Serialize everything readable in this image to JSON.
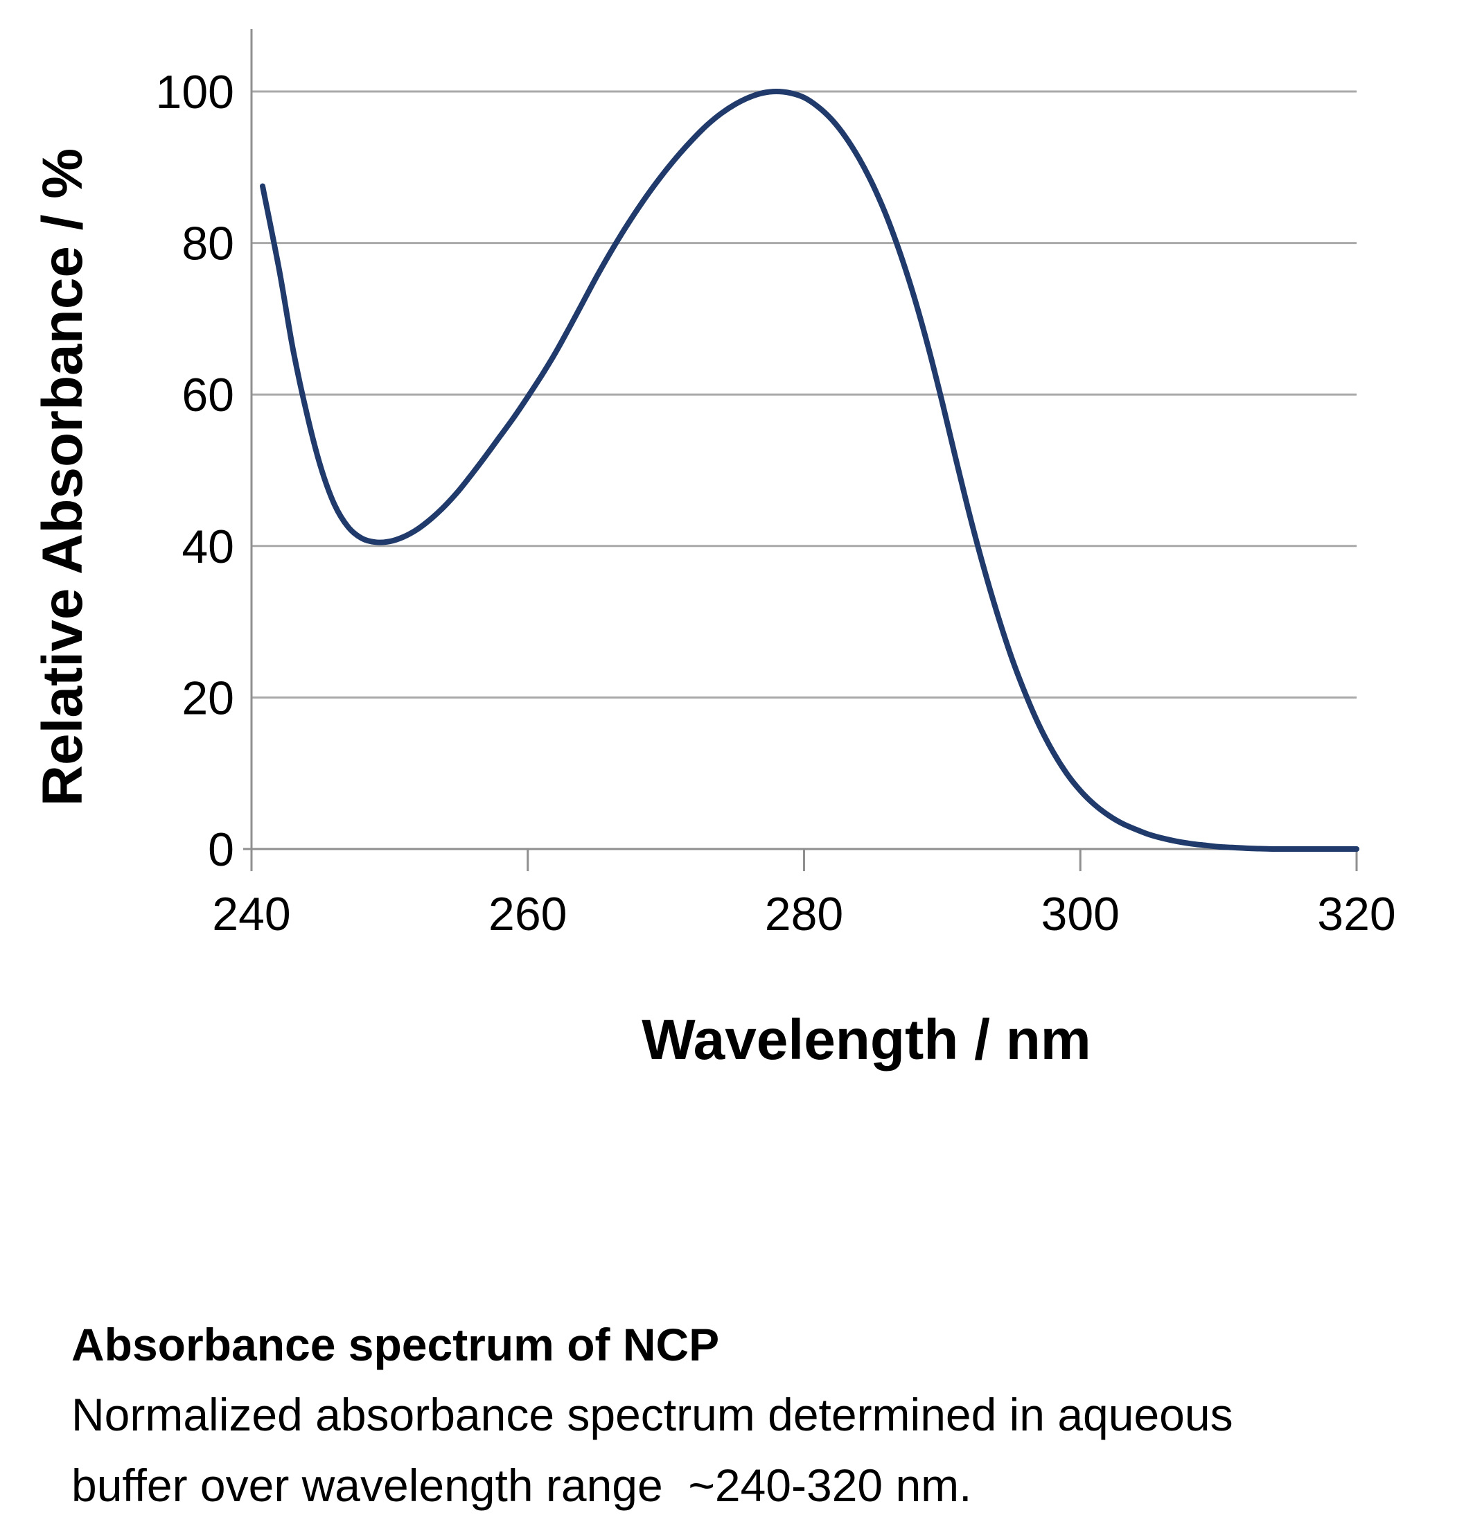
{
  "chart_data": {
    "type": "line",
    "xlabel": "Wavelength / nm",
    "ylabel": "Relative Absorbance / %",
    "xlim": [
      240,
      320
    ],
    "ylim": [
      0,
      100
    ],
    "x_ticks": [
      "240",
      "260",
      "280",
      "300",
      "320"
    ],
    "y_ticks": [
      "0",
      "20",
      "40",
      "60",
      "80",
      "100"
    ],
    "grid": "horizontal",
    "series_color": "#1f3a6b",
    "series": [
      {
        "x": [
          240.8,
          242,
          243,
          244,
          245,
          246,
          247,
          248,
          249,
          250,
          251,
          252,
          253,
          254,
          255,
          256,
          257,
          258,
          259,
          260,
          261,
          262,
          263,
          264,
          265,
          266,
          267,
          268,
          269,
          270,
          271,
          272,
          273,
          274,
          275,
          276,
          277,
          278,
          279,
          280,
          281,
          282,
          283,
          284,
          285,
          286,
          287,
          288,
          289,
          290,
          291,
          292,
          293,
          294,
          295,
          296,
          297,
          298,
          299,
          300,
          301,
          302,
          303,
          304,
          305,
          306,
          307,
          308,
          309,
          310,
          311,
          312,
          313,
          314,
          315,
          316,
          318,
          320
        ],
        "values": [
          87.5,
          76.5,
          66,
          57.5,
          50.5,
          45.5,
          42.5,
          41,
          40.5,
          40.6,
          41.2,
          42.2,
          43.6,
          45.3,
          47.3,
          49.6,
          52,
          54.5,
          57,
          59.7,
          62.5,
          65.5,
          68.8,
          72.2,
          75.6,
          78.8,
          81.8,
          84.6,
          87.2,
          89.6,
          91.8,
          93.8,
          95.6,
          97.1,
          98.3,
          99.2,
          99.8,
          100,
          99.8,
          99.2,
          98,
          96.3,
          94,
          91.1,
          87.6,
          83.4,
          78.4,
          72.7,
          66.2,
          59,
          51.4,
          44,
          37.2,
          31,
          25.4,
          20.6,
          16.4,
          12.9,
          10,
          7.7,
          5.9,
          4.5,
          3.4,
          2.6,
          1.9,
          1.4,
          1,
          0.7,
          0.5,
          0.3,
          0.2,
          0.1,
          0.05,
          0,
          0,
          0,
          0,
          0
        ]
      }
    ]
  },
  "caption": {
    "title": "Absorbance spectrum of NCP",
    "line1": "Normalized absorbance spectrum determined in aqueous",
    "line2": "buffer over wavelength range  ~240-320 nm."
  }
}
